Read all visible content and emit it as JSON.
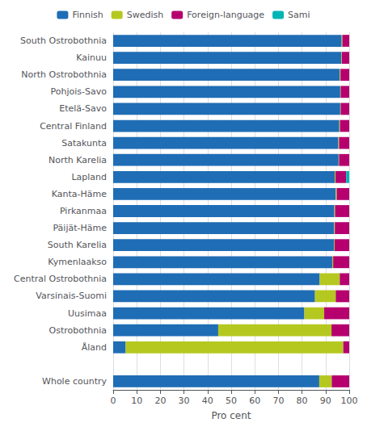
{
  "chart_data": {
    "type": "bar",
    "orientation": "horizontal",
    "stacked": true,
    "categories": [
      "South Ostrobothnia",
      "Kainuu",
      "North Ostrobothnia",
      "Pohjois-Savo",
      "Etelä-Savo",
      "Central Finland",
      "Satakunta",
      "North Karelia",
      "Lapland",
      "Kanta-Häme",
      "Pirkanmaa",
      "Päijät-Häme",
      "South Karelia",
      "Kymenlaakso",
      "Central Ostrobothnia",
      "Varsinais-Suomi",
      "Uusimaa",
      "Ostrobothnia",
      "Åland",
      null,
      "Whole country"
    ],
    "series": [
      {
        "name": "Finnish",
        "color": "#1F6DB5",
        "values": [
          96.8,
          96.7,
          96.0,
          96.2,
          96.2,
          95.8,
          95.4,
          95.5,
          93.9,
          94.3,
          93.7,
          93.6,
          93.5,
          92.8,
          87.5,
          85.5,
          81.0,
          44.5,
          5.3,
          0.0,
          87.3
        ]
      },
      {
        "name": "Swedish",
        "color": "#B5C820",
        "values": [
          0.3,
          0.2,
          0.3,
          0.2,
          0.2,
          0.3,
          0.3,
          0.2,
          0.3,
          0.4,
          0.3,
          0.3,
          0.3,
          0.4,
          8.5,
          8.8,
          8.4,
          48.0,
          92.2,
          0.0,
          5.3
        ]
      },
      {
        "name": "Foreign-language",
        "color": "#B5006E",
        "values": [
          2.9,
          3.1,
          3.7,
          3.6,
          3.6,
          3.9,
          4.3,
          4.3,
          4.5,
          5.3,
          6.0,
          6.1,
          6.2,
          6.8,
          4.0,
          5.7,
          10.6,
          7.5,
          2.5,
          0.0,
          7.4
        ]
      },
      {
        "name": "Sami",
        "color": "#00B5B5",
        "values": [
          0.0,
          0.0,
          0.0,
          0.0,
          0.0,
          0.0,
          0.0,
          0.0,
          1.3,
          0.0,
          0.0,
          0.0,
          0.0,
          0.0,
          0.0,
          0.0,
          0.0,
          0.0,
          0.0,
          0.0,
          0.0
        ]
      }
    ],
    "xlabel": "Pro cent",
    "xlim": [
      0,
      100
    ],
    "xticks": [
      0,
      10,
      20,
      30,
      40,
      50,
      60,
      70,
      80,
      90,
      100
    ],
    "grid": true,
    "legend": "top"
  }
}
